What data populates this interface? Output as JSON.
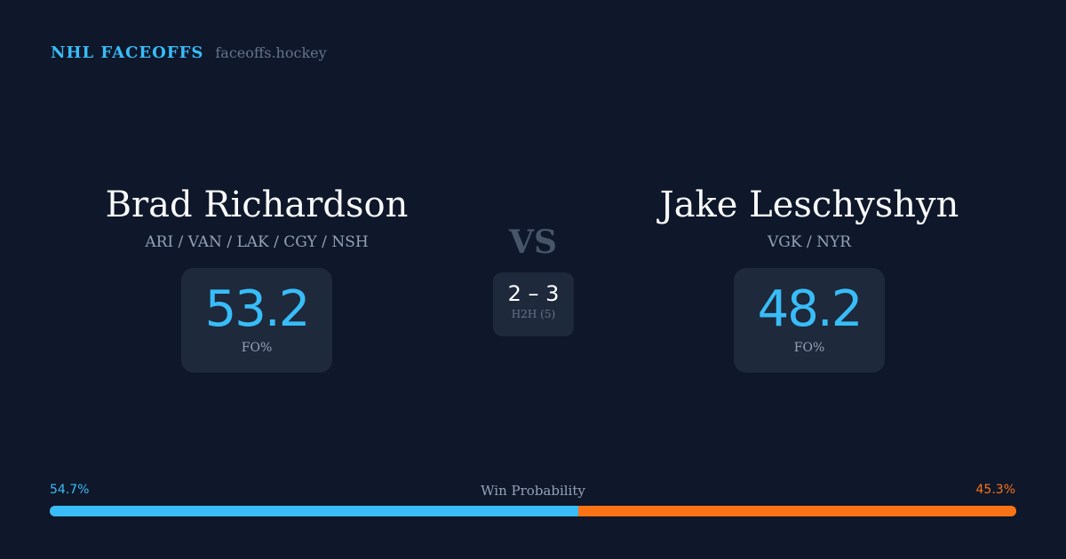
{
  "brand": {
    "name": "NHL FACEOFFS",
    "url": "faceoffs.hockey"
  },
  "player1": {
    "name": "Brad Richardson",
    "teams": "ARI / VAN / LAK / CGY / NSH",
    "fo_pct": "53.2",
    "fo_label": "FO%"
  },
  "player2": {
    "name": "Jake Leschyshyn",
    "teams": "VGK / NYR",
    "fo_pct": "48.2",
    "fo_label": "FO%"
  },
  "vs": "VS",
  "h2h": {
    "score": "2 – 3",
    "label": "H2H (5)"
  },
  "win_probability": {
    "label": "Win Probability",
    "left_text": "54.7%",
    "right_text": "45.3%",
    "left_value": 54.7,
    "right_value": 45.3,
    "left_color": "#38bdf8",
    "right_color": "#f97316"
  }
}
